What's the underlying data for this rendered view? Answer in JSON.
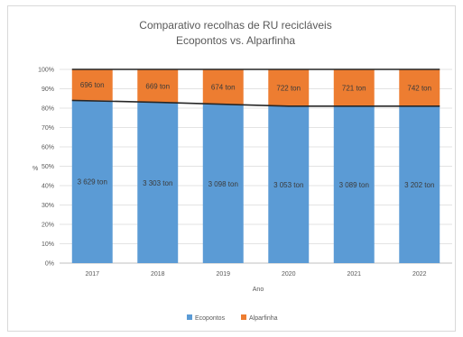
{
  "chart_data": {
    "type": "bar",
    "stacked": true,
    "title": [
      "Comparativo recolhas de RU recicláveis",
      "Ecopontos vs. Alparfinha"
    ],
    "xlabel": "Ano",
    "ylabel": "%",
    "ylim": [
      0,
      100
    ],
    "yticks": [
      "0%",
      "10%",
      "20%",
      "30%",
      "40%",
      "50%",
      "60%",
      "70%",
      "80%",
      "90%",
      "100%"
    ],
    "categories": [
      "2017",
      "2018",
      "2019",
      "2020",
      "2021",
      "2022"
    ],
    "series": [
      {
        "name": "Ecopontos",
        "color": "#5b9bd5",
        "values": [
          84,
          83,
          82,
          81,
          81,
          81
        ],
        "labels": [
          "3 629 ton",
          "3 303 ton",
          "3 098 ton",
          "3 053 ton",
          "3 089 ton",
          "3 202 ton"
        ]
      },
      {
        "name": "Alparfinha",
        "color": "#ed7d31",
        "values": [
          16,
          17,
          18,
          19,
          19,
          19
        ],
        "labels": [
          "696 ton",
          "669 ton",
          "674 ton",
          "722 ton",
          "721 ton",
          "742 ton"
        ]
      }
    ],
    "lines": [
      {
        "series": "Ecopontos",
        "color": "#262626",
        "values": [
          84,
          83,
          82,
          81,
          81,
          81
        ]
      },
      {
        "series": "total",
        "color": "#262626",
        "values": [
          100,
          100,
          100,
          100,
          100,
          100
        ]
      }
    ],
    "grid": true,
    "legend_position": "bottom"
  }
}
